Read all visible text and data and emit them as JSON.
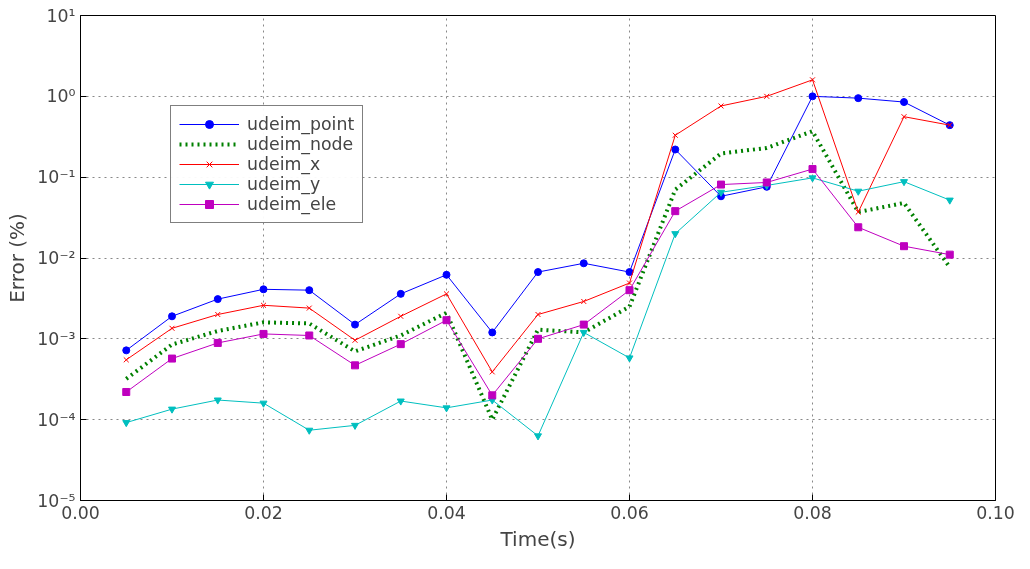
{
  "chart_data": {
    "type": "line",
    "xlabel": "Time(s)",
    "ylabel": "Error (%)",
    "log": "y",
    "grid": true,
    "legend": "top left",
    "x": [
      0.005,
      0.01,
      0.015,
      0.02,
      0.025,
      0.03,
      0.035,
      0.04,
      0.045,
      0.05,
      0.055,
      0.06,
      0.065,
      0.07,
      0.075,
      0.08,
      0.085,
      0.09,
      0.095
    ],
    "xlim": [
      0,
      0.1
    ],
    "xticks": [
      {
        "value": 0,
        "label": "0.00"
      },
      {
        "value": 0.02,
        "label": "0.02"
      },
      {
        "value": 0.04,
        "label": "0.04"
      },
      {
        "value": 0.06,
        "label": "0.06"
      },
      {
        "value": 0.08,
        "label": "0.08"
      },
      {
        "value": 0.1,
        "label": "0.10"
      }
    ],
    "ylim": [
      1e-05,
      10
    ],
    "yticks": [
      {
        "value": 1e-05,
        "label": "10⁻⁵"
      },
      {
        "value": 0.0001,
        "label": "10⁻⁴"
      },
      {
        "value": 0.001,
        "label": "10⁻³"
      },
      {
        "value": 0.01,
        "label": "10⁻²"
      },
      {
        "value": 0.1,
        "label": "10⁻¹"
      },
      {
        "value": 1,
        "label": "10⁰"
      },
      {
        "value": 10,
        "label": "10¹"
      }
    ],
    "series": [
      {
        "name": "udeim_point",
        "color": "#0000ff",
        "marker": "circle",
        "line_style": "solid",
        "values": [
          0.00072,
          0.0019,
          0.0031,
          0.0041,
          0.004,
          0.0015,
          0.0036,
          0.0062,
          0.0012,
          0.0067,
          0.0086,
          0.0067,
          0.22,
          0.058,
          0.076,
          1.0,
          0.95,
          0.85,
          0.44
        ]
      },
      {
        "name": "udeim_node",
        "color": "#008000",
        "marker": "none",
        "line_style": "dotted",
        "values": [
          0.00032,
          0.00085,
          0.00125,
          0.0016,
          0.00155,
          0.0007,
          0.0011,
          0.0021,
          0.0001,
          0.0013,
          0.0012,
          0.0025,
          0.07,
          0.196,
          0.23,
          0.37,
          0.037,
          0.048,
          0.0077
        ]
      },
      {
        "name": "udeim_x",
        "color": "#ff0000",
        "marker": "cross",
        "line_style": "solid",
        "values": [
          0.00055,
          0.00135,
          0.002,
          0.0026,
          0.0024,
          0.00096,
          0.0019,
          0.0036,
          0.00039,
          0.002,
          0.0029,
          0.0049,
          0.33,
          0.76,
          1.0,
          1.6,
          0.037,
          0.56,
          0.44
        ]
      },
      {
        "name": "udeim_y",
        "color": "#00bfbf",
        "marker": "triangle",
        "line_style": "solid",
        "values": [
          9.2e-05,
          0.000135,
          0.000175,
          0.00016,
          7.4e-05,
          8.5e-05,
          0.00017,
          0.00014,
          0.000175,
          6.3e-05,
          0.0012,
          0.00058,
          0.02,
          0.065,
          0.079,
          0.098,
          0.067,
          0.088,
          0.052
        ]
      },
      {
        "name": "udeim_ele",
        "color": "#bf00bf",
        "marker": "square",
        "line_style": "solid",
        "values": [
          0.00022,
          0.00057,
          0.00089,
          0.00115,
          0.0011,
          0.00047,
          0.00086,
          0.0017,
          0.0002,
          0.001,
          0.0015,
          0.004,
          0.038,
          0.081,
          0.086,
          0.126,
          0.024,
          0.014,
          0.011
        ]
      }
    ]
  }
}
